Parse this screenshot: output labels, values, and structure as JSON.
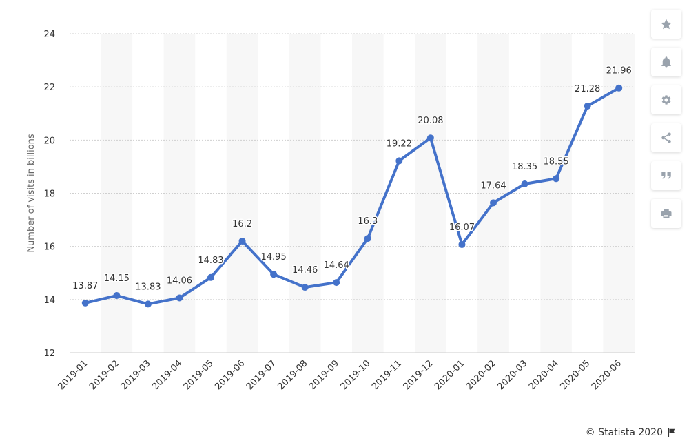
{
  "chart_data": {
    "type": "line",
    "categories": [
      "2019-01",
      "2019-02",
      "2019-03",
      "2019-04",
      "2019-05",
      "2019-06",
      "2019-07",
      "2019-08",
      "2019-09",
      "2019-10",
      "2019-11",
      "2019-12",
      "2020-01",
      "2020-02",
      "2020-03",
      "2020-04",
      "2020-05",
      "2020-06"
    ],
    "series": [
      {
        "values": [
          13.87,
          14.15,
          13.83,
          14.06,
          14.83,
          16.2,
          14.95,
          14.46,
          14.64,
          16.3,
          19.22,
          20.08,
          16.07,
          17.64,
          18.35,
          18.55,
          21.28,
          21.96
        ]
      }
    ],
    "value_labels": [
      "13.87",
      "14.15",
      "13.83",
      "14.06",
      "14.83",
      "16.2",
      "14.95",
      "14.46",
      "14.64",
      "16.3",
      "19.22",
      "20.08",
      "16.07",
      "17.64",
      "18.35",
      "18.55",
      "21.28",
      "21.96"
    ],
    "ylabel": "Number of visits in billions",
    "ylim": [
      12,
      24
    ],
    "yticks": [
      "12",
      "14",
      "16",
      "18",
      "20",
      "22",
      "24"
    ],
    "grid": true,
    "line_color": "#4472ca"
  },
  "toolbar": {
    "items": [
      {
        "name": "star-icon"
      },
      {
        "name": "bell-icon"
      },
      {
        "name": "gear-icon"
      },
      {
        "name": "share-icon"
      },
      {
        "name": "quote-icon"
      },
      {
        "name": "print-icon"
      }
    ]
  },
  "footer": {
    "credit": "© Statista 2020"
  }
}
